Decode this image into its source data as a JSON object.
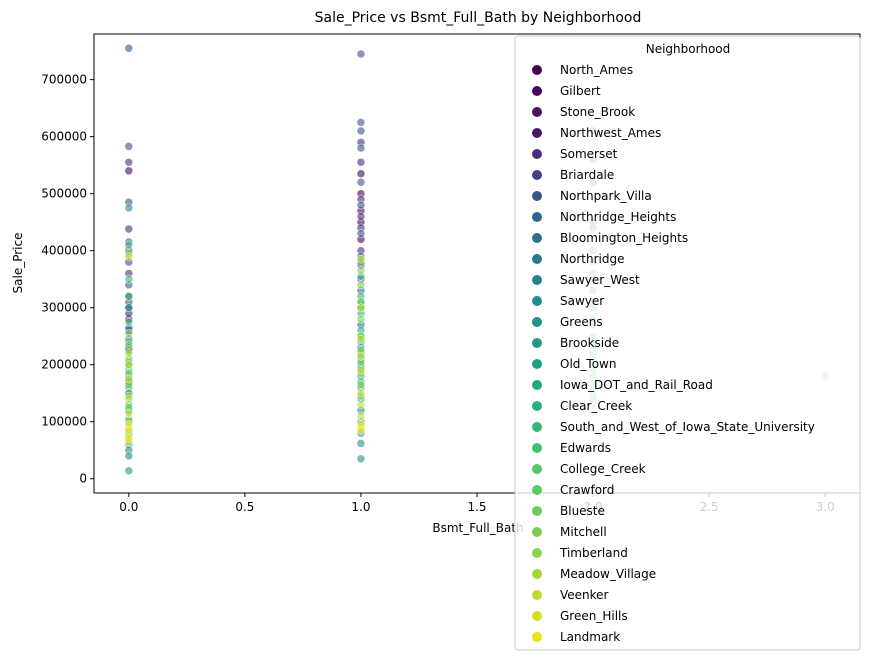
{
  "chart_data": {
    "type": "scatter",
    "title": "Sale_Price vs Bsmt_Full_Bath by Neighborhood",
    "xlabel": "Bsmt_Full_Bath",
    "ylabel": "Sale_Price",
    "xlim": [
      -0.15,
      3.15
    ],
    "ylim": [
      -25000,
      780000
    ],
    "xticks": [
      0.0,
      0.5,
      1.0,
      1.5,
      2.0,
      2.5,
      3.0
    ],
    "xtick_labels": [
      "0.0",
      "0.5",
      "1.0",
      "1.5",
      "2.0",
      "2.5",
      "3.0"
    ],
    "yticks": [
      0,
      100000,
      200000,
      300000,
      400000,
      500000,
      600000,
      700000
    ],
    "ytick_labels": [
      "0",
      "100000",
      "200000",
      "300000",
      "400000",
      "500000",
      "600000",
      "700000"
    ],
    "grid": false,
    "legend": {
      "title": "Neighborhood",
      "placement": "top-right",
      "entries": [
        {
          "name": "North_Ames",
          "color": "#440154"
        },
        {
          "name": "Gilbert",
          "color": "#46085c"
        },
        {
          "name": "Stone_Brook",
          "color": "#471063"
        },
        {
          "name": "Northwest_Ames",
          "color": "#48186a"
        },
        {
          "name": "Somerset",
          "color": "#472d7b"
        },
        {
          "name": "Briardale",
          "color": "#424086"
        },
        {
          "name": "Northpark_Villa",
          "color": "#3b528b"
        },
        {
          "name": "Northridge_Heights",
          "color": "#33638d"
        },
        {
          "name": "Bloomington_Heights",
          "color": "#2c728e"
        },
        {
          "name": "Northridge",
          "color": "#2a768e"
        },
        {
          "name": "Sawyer_West",
          "color": "#26818e"
        },
        {
          "name": "Sawyer",
          "color": "#238a8d"
        },
        {
          "name": "Greens",
          "color": "#21918c"
        },
        {
          "name": "Brookside",
          "color": "#1f988b"
        },
        {
          "name": "Old_Town",
          "color": "#1fa188"
        },
        {
          "name": "Iowa_DOT_and_Rail_Road",
          "color": "#22a884"
        },
        {
          "name": "Clear_Creek",
          "color": "#2ab07f"
        },
        {
          "name": "South_and_West_of_Iowa_State_University",
          "color": "#35b779"
        },
        {
          "name": "Edwards",
          "color": "#44bf70"
        },
        {
          "name": "College_Creek",
          "color": "#54c568"
        },
        {
          "name": "Crawford",
          "color": "#5ec962"
        },
        {
          "name": "Blueste",
          "color": "#6ccd5a"
        },
        {
          "name": "Mitchell",
          "color": "#7ad151"
        },
        {
          "name": "Timberland",
          "color": "#8bd646"
        },
        {
          "name": "Meadow_Village",
          "color": "#a0da39"
        },
        {
          "name": "Veenker",
          "color": "#b5de2b"
        },
        {
          "name": "Green_Hills",
          "color": "#d0e11c"
        },
        {
          "name": "Landmark",
          "color": "#e7e419"
        }
      ]
    },
    "series": [
      {
        "x": 0,
        "color": "#440154",
        "values": [
          280000,
          300000,
          230000,
          260000,
          170000,
          540000
        ]
      },
      {
        "x": 0,
        "color": "#472d7b",
        "values": [
          555000,
          438000,
          400000,
          360000,
          320000,
          290000
        ]
      },
      {
        "x": 0,
        "color": "#3b528b",
        "values": [
          755000,
          583000,
          485000,
          415000,
          380000,
          340000,
          310000
        ]
      },
      {
        "x": 0,
        "color": "#2c728e",
        "values": [
          265000,
          245000,
          225000,
          200000,
          180000,
          160000
        ]
      },
      {
        "x": 0,
        "color": "#21918c",
        "values": [
          475000,
          300000,
          150000,
          120000,
          100000,
          80000,
          60000,
          50000,
          40000,
          14000
        ]
      },
      {
        "x": 0,
        "color": "#35b779",
        "values": [
          410000,
          350000,
          320000,
          275000,
          240000,
          210000,
          190000,
          170000,
          150000,
          130000
        ]
      },
      {
        "x": 0,
        "color": "#7ad151",
        "values": [
          395000,
          255000,
          235000,
          205000,
          185000,
          165000,
          145000,
          125000,
          105000
        ]
      },
      {
        "x": 0,
        "color": "#b5de2b",
        "values": [
          390000,
          220000,
          200000,
          175000,
          140000,
          115000,
          90000,
          75000,
          65000
        ]
      },
      {
        "x": 0,
        "color": "#e7e419",
        "values": [
          95000,
          85000,
          70000
        ]
      },
      {
        "x": 1,
        "color": "#440154",
        "values": [
          535000,
          500000,
          470000,
          450000,
          420000
        ]
      },
      {
        "x": 1,
        "color": "#472d7b",
        "values": [
          590000,
          555000,
          490000,
          460000,
          440000,
          400000,
          375000
        ]
      },
      {
        "x": 1,
        "color": "#3b528b",
        "values": [
          745000,
          625000,
          610000,
          580000,
          520000,
          480000,
          430000,
          390000,
          350000
        ]
      },
      {
        "x": 1,
        "color": "#2c728e",
        "values": [
          330000,
          300000,
          270000,
          250000,
          230000,
          210000
        ]
      },
      {
        "x": 1,
        "color": "#21918c",
        "values": [
          310000,
          200000,
          180000,
          160000,
          140000,
          120000,
          100000,
          80000,
          62000,
          35000
        ]
      },
      {
        "x": 1,
        "color": "#35b779",
        "values": [
          380000,
          355000,
          320000,
          290000,
          260000,
          240000,
          220000,
          195000,
          170000
        ]
      },
      {
        "x": 1,
        "color": "#7ad151",
        "values": [
          365000,
          340000,
          310000,
          280000,
          250000,
          225000,
          205000,
          185000,
          165000,
          145000
        ]
      },
      {
        "x": 1,
        "color": "#b5de2b",
        "values": [
          385000,
          300000,
          245000,
          215000,
          190000,
          150000,
          130000,
          110000,
          90000
        ]
      },
      {
        "x": 1,
        "color": "#e7e419",
        "values": [
          95000,
          85000
        ]
      },
      {
        "x": 2,
        "color": "#3b528b",
        "values": [
          610000,
          560000,
          520000,
          450000
        ]
      },
      {
        "x": 2,
        "color": "#21918c",
        "values": [
          440000,
          400000,
          360000,
          330000,
          300000,
          270000,
          240000
        ]
      },
      {
        "x": 2,
        "color": "#35b779",
        "values": [
          380000,
          350000,
          310000,
          280000,
          250000,
          220000,
          200000,
          180000,
          160000,
          140000
        ]
      },
      {
        "x": 2,
        "color": "#7ad151",
        "values": [
          230000,
          210000,
          190000,
          170000,
          150000,
          130000
        ]
      },
      {
        "x": 3,
        "color": "#54c568",
        "values": [
          180000
        ]
      }
    ]
  }
}
